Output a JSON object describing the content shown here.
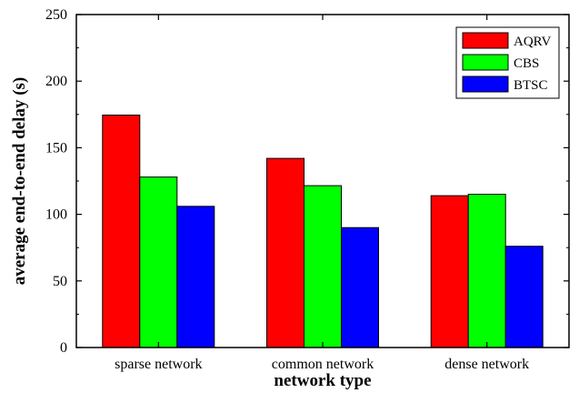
{
  "chart_data": {
    "type": "bar",
    "title": "",
    "xlabel": "network type",
    "ylabel": "average end-to-end delay (s)",
    "categories": [
      "sparse network",
      "common network",
      "dense network"
    ],
    "series": [
      {
        "name": "AQRV",
        "color": "#ff0000",
        "values": [
          174.5,
          142,
          114
        ]
      },
      {
        "name": "CBS",
        "color": "#00ff00",
        "values": [
          128,
          121.5,
          115
        ]
      },
      {
        "name": "BTSC",
        "color": "#0000ff",
        "values": [
          106,
          90,
          76
        ]
      }
    ],
    "ylim": [
      0,
      250
    ],
    "yticks": [
      0,
      50,
      100,
      150,
      200,
      250
    ],
    "grid": false,
    "legend_position": "top-right"
  }
}
